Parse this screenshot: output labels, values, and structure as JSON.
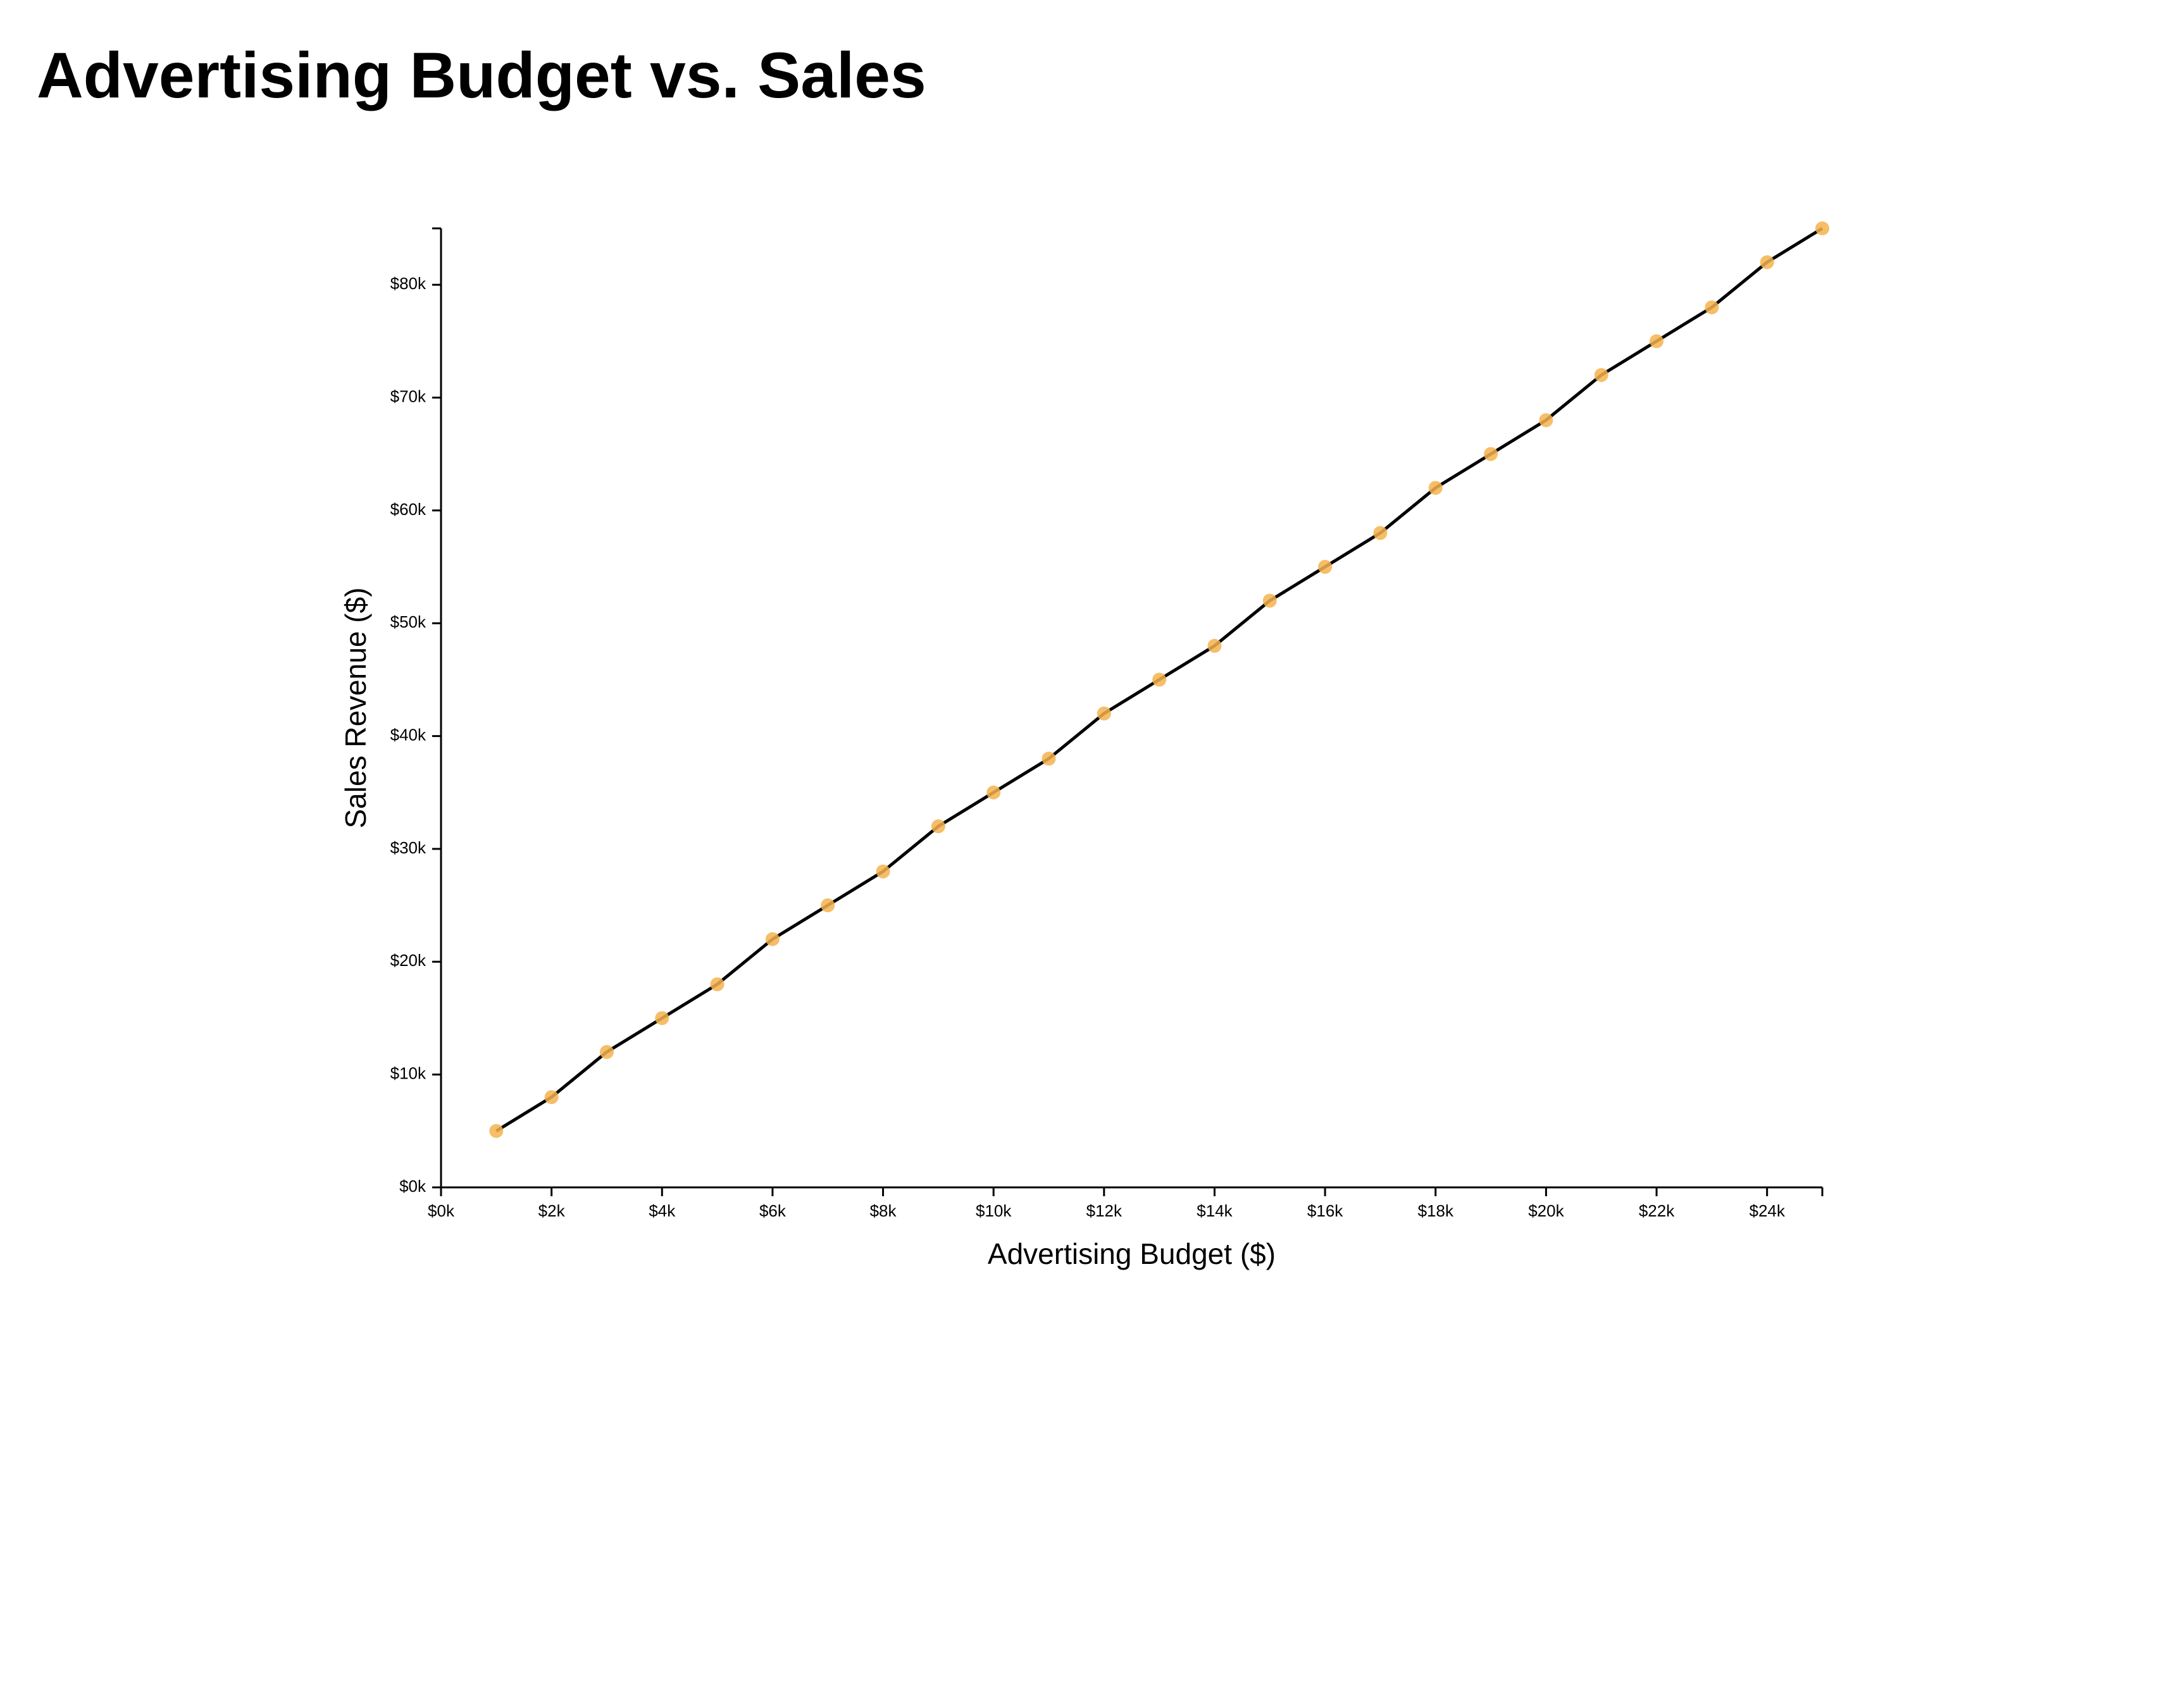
{
  "title": "Advertising Budget vs. Sales",
  "chart_data": {
    "type": "line",
    "title": "Advertising Budget vs. Sales",
    "xlabel": "Advertising Budget ($)",
    "ylabel": "Sales Revenue ($)",
    "xlim": [
      0,
      25000
    ],
    "ylim": [
      0,
      85000
    ],
    "x_ticks": [
      0,
      2000,
      4000,
      6000,
      8000,
      10000,
      12000,
      14000,
      16000,
      18000,
      20000,
      22000,
      24000
    ],
    "x_tick_labels": [
      "$0k",
      "$2k",
      "$4k",
      "$6k",
      "$8k",
      "$10k",
      "$12k",
      "$14k",
      "$16k",
      "$18k",
      "$20k",
      "$22k",
      "$24k"
    ],
    "y_ticks": [
      0,
      10000,
      20000,
      30000,
      40000,
      50000,
      60000,
      70000,
      80000
    ],
    "y_tick_labels": [
      "$0k",
      "$10k",
      "$20k",
      "$30k",
      "$40k",
      "$50k",
      "$60k",
      "$70k",
      "$80k"
    ],
    "grid": false,
    "legend": "none",
    "x": [
      1000,
      2000,
      3000,
      4000,
      5000,
      6000,
      7000,
      8000,
      9000,
      10000,
      11000,
      12000,
      13000,
      14000,
      15000,
      16000,
      17000,
      18000,
      19000,
      20000,
      21000,
      22000,
      23000,
      24000,
      25000
    ],
    "y": [
      5000,
      8000,
      12000,
      15000,
      18000,
      22000,
      25000,
      28000,
      32000,
      35000,
      38000,
      42000,
      45000,
      48000,
      52000,
      55000,
      58000,
      62000,
      65000,
      68000,
      72000,
      75000,
      78000,
      82000,
      85000
    ],
    "colors": {
      "line": "#000000",
      "point": "#f5b34e"
    }
  }
}
